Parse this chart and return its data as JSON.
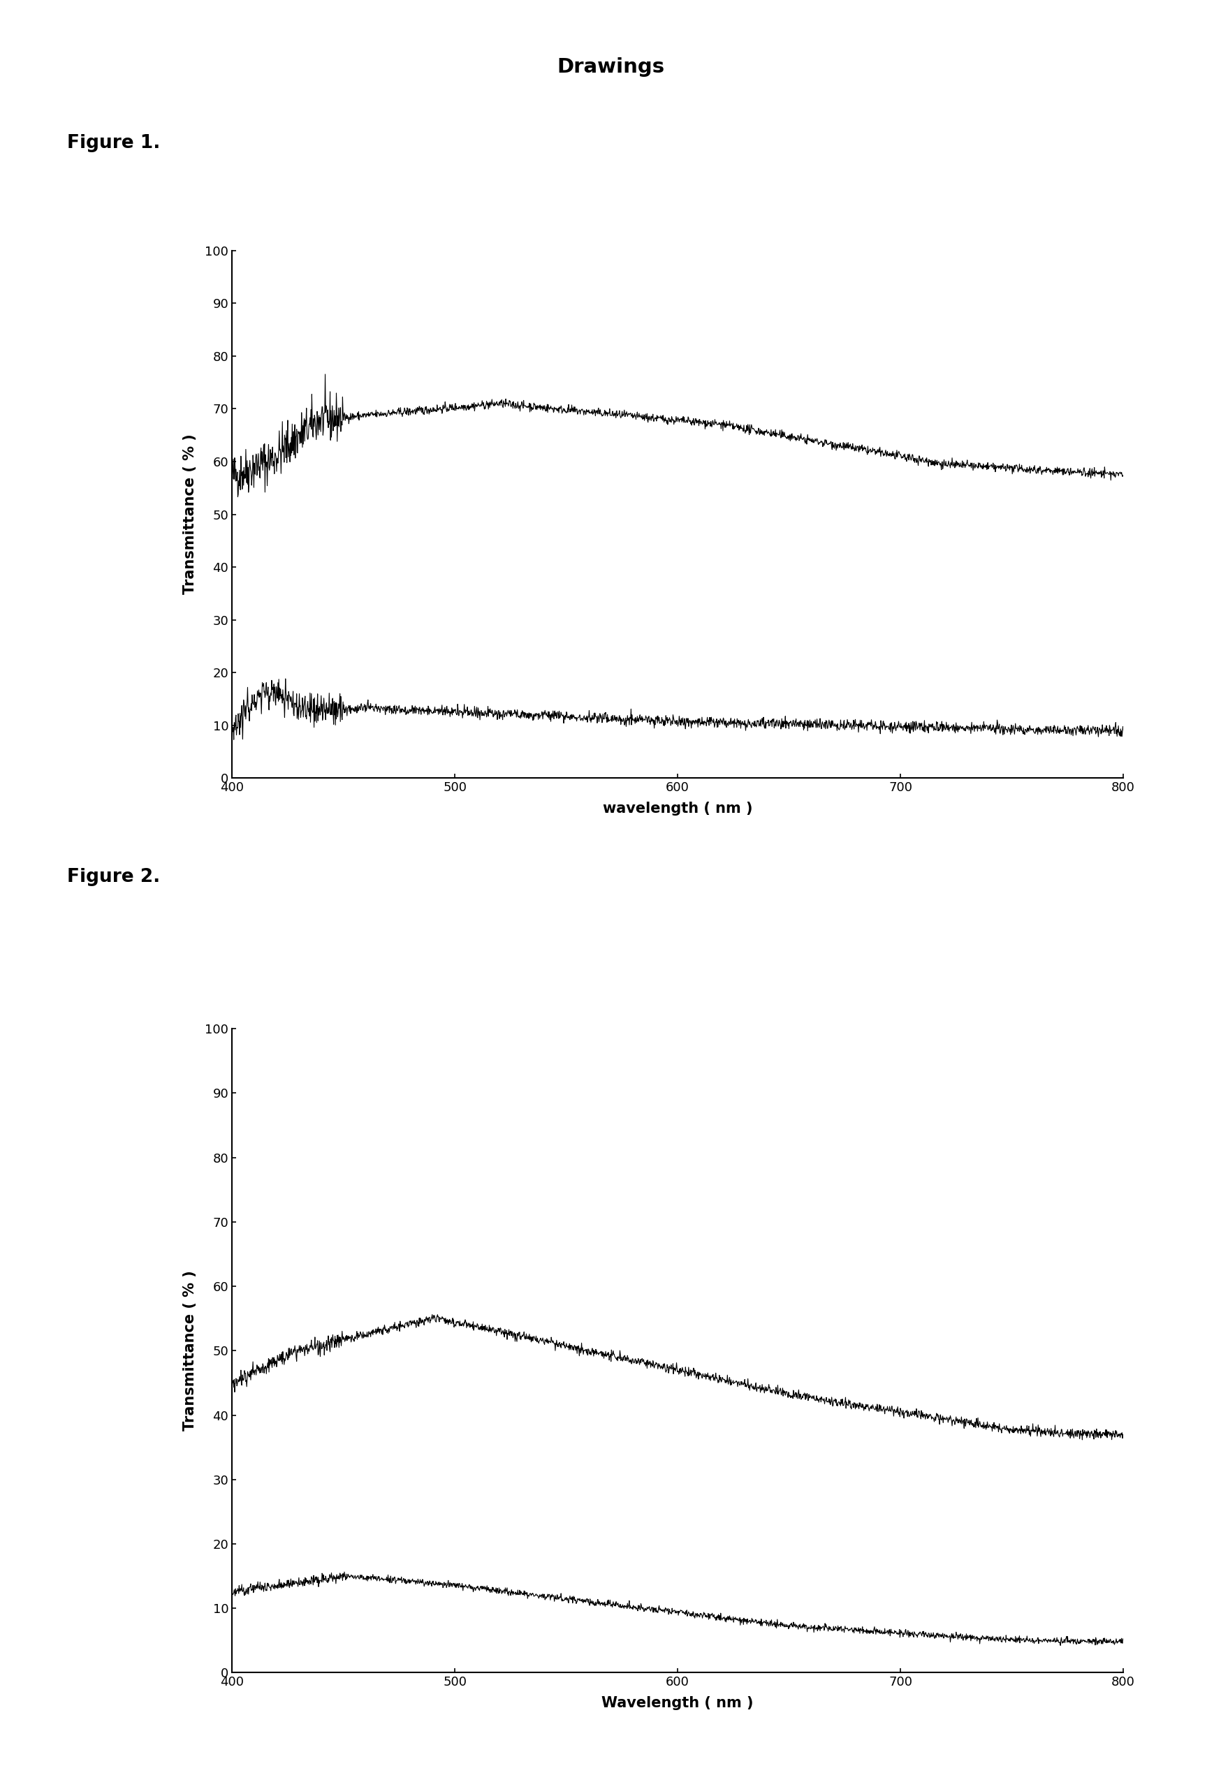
{
  "page_title": "Drawings",
  "fig1_label": "Figure 1.",
  "fig2_label": "Figure 2.",
  "fig1_ylabel": "Transmittance ( % )",
  "fig2_ylabel": "Transmittance ( % )",
  "fig1_xlabel": "wavelength ( nm )",
  "fig2_xlabel": "Wavelength ( nm )",
  "xlim": [
    400,
    800
  ],
  "ylim": [
    0,
    100
  ],
  "yticks": [
    0,
    10,
    20,
    30,
    40,
    50,
    60,
    70,
    80,
    90,
    100
  ],
  "xticks": [
    400,
    500,
    600,
    700,
    800
  ],
  "background_color": "#ffffff",
  "line_color": "#000000",
  "line_width": 0.8
}
